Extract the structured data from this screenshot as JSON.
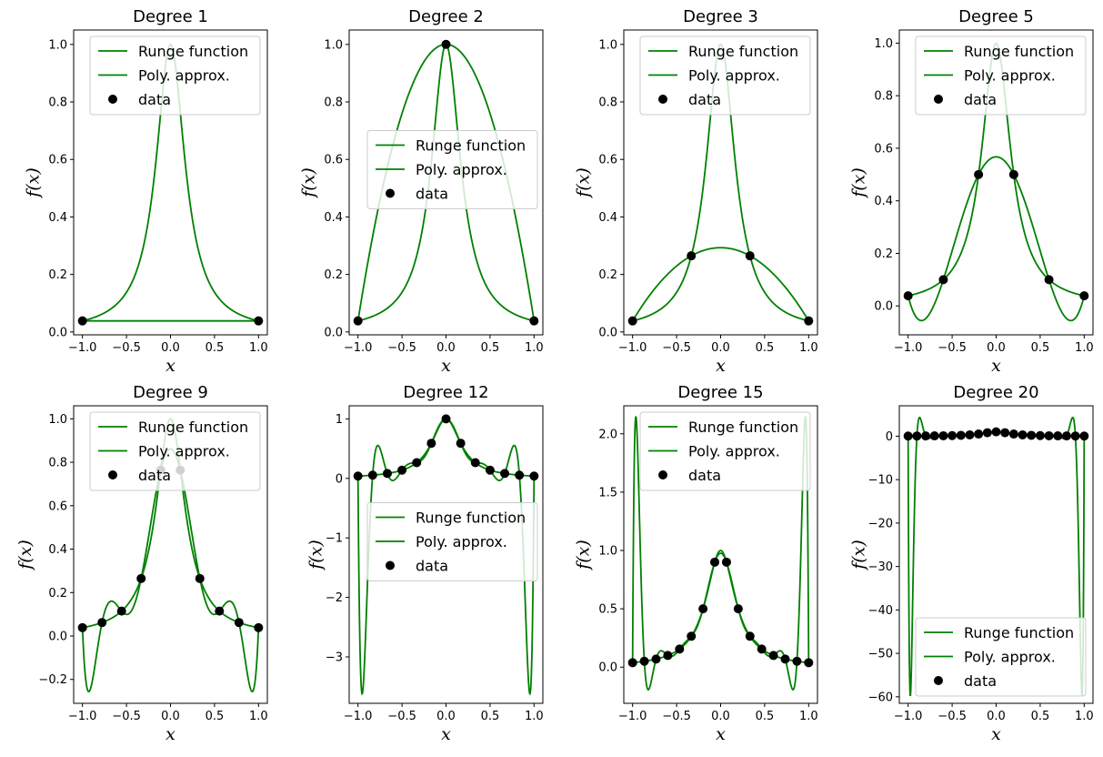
{
  "chart_data": [
    {
      "type": "line",
      "title": "Degree 1",
      "degree": 1,
      "xlabel": "x",
      "ylabel": "f(x)",
      "xlim": [
        -1.1,
        1.1
      ],
      "ylim": [
        -0.01,
        1.05
      ],
      "xticks": [
        -1.0,
        -0.5,
        0.0,
        0.5,
        1.0
      ],
      "xtick_labels": [
        "−1.0",
        "−0.5",
        "0.0",
        "0.5",
        "1.0"
      ],
      "yticks": [
        0.0,
        0.2,
        0.4,
        0.6,
        0.8,
        1.0
      ],
      "ytick_labels": [
        "0.0",
        "0.2",
        "0.4",
        "0.6",
        "0.8",
        "1.0"
      ],
      "legend": {
        "placement": "upper-right",
        "entries": [
          "Runge function",
          "Poly. approx.",
          "data"
        ]
      },
      "series": [
        {
          "name": "Runge function",
          "color": "#008000"
        },
        {
          "name": "Poly. approx.",
          "color": "#008000"
        },
        {
          "name": "data",
          "color": "#000000"
        }
      ]
    },
    {
      "type": "line",
      "title": "Degree 2",
      "degree": 2,
      "xlabel": "x",
      "ylabel": "f(x)",
      "xlim": [
        -1.1,
        1.1
      ],
      "ylim": [
        -0.01,
        1.05
      ],
      "xticks": [
        -1.0,
        -0.5,
        0.0,
        0.5,
        1.0
      ],
      "xtick_labels": [
        "−1.0",
        "−0.5",
        "0.0",
        "0.5",
        "1.0"
      ],
      "yticks": [
        0.0,
        0.2,
        0.4,
        0.6,
        0.8,
        1.0
      ],
      "ytick_labels": [
        "0.0",
        "0.2",
        "0.4",
        "0.6",
        "0.8",
        "1.0"
      ],
      "legend": {
        "placement": "center-right",
        "entries": [
          "Runge function",
          "Poly. approx.",
          "data"
        ]
      },
      "series": [
        {
          "name": "Runge function",
          "color": "#008000"
        },
        {
          "name": "Poly. approx.",
          "color": "#008000"
        },
        {
          "name": "data",
          "color": "#000000"
        }
      ]
    },
    {
      "type": "line",
      "title": "Degree 3",
      "degree": 3,
      "xlabel": "x",
      "ylabel": "f(x)",
      "xlim": [
        -1.1,
        1.1
      ],
      "ylim": [
        -0.01,
        1.05
      ],
      "xticks": [
        -1.0,
        -0.5,
        0.0,
        0.5,
        1.0
      ],
      "xtick_labels": [
        "−1.0",
        "−0.5",
        "0.0",
        "0.5",
        "1.0"
      ],
      "yticks": [
        0.0,
        0.2,
        0.4,
        0.6,
        0.8,
        1.0
      ],
      "ytick_labels": [
        "0.0",
        "0.2",
        "0.4",
        "0.6",
        "0.8",
        "1.0"
      ],
      "legend": {
        "placement": "upper-right",
        "entries": [
          "Runge function",
          "Poly. approx.",
          "data"
        ]
      },
      "series": [
        {
          "name": "Runge function",
          "color": "#008000"
        },
        {
          "name": "Poly. approx.",
          "color": "#008000"
        },
        {
          "name": "data",
          "color": "#000000"
        }
      ]
    },
    {
      "type": "line",
      "title": "Degree 5",
      "degree": 5,
      "xlabel": "x",
      "ylabel": "f(x)",
      "xlim": [
        -1.1,
        1.1
      ],
      "ylim": [
        -0.11,
        1.05
      ],
      "xticks": [
        -1.0,
        -0.5,
        0.0,
        0.5,
        1.0
      ],
      "xtick_labels": [
        "−1.0",
        "−0.5",
        "0.0",
        "0.5",
        "1.0"
      ],
      "yticks": [
        0.0,
        0.2,
        0.4,
        0.6,
        0.8,
        1.0
      ],
      "ytick_labels": [
        "0.0",
        "0.2",
        "0.4",
        "0.6",
        "0.8",
        "1.0"
      ],
      "legend": {
        "placement": "upper-right",
        "entries": [
          "Runge function",
          "Poly. approx.",
          "data"
        ]
      },
      "series": [
        {
          "name": "Runge function",
          "color": "#008000"
        },
        {
          "name": "Poly. approx.",
          "color": "#008000"
        },
        {
          "name": "data",
          "color": "#000000"
        }
      ]
    },
    {
      "type": "line",
      "title": "Degree 9",
      "degree": 9,
      "xlabel": "x",
      "ylabel": "f(x)",
      "xlim": [
        -1.1,
        1.1
      ],
      "ylim": [
        -0.31,
        1.06
      ],
      "xticks": [
        -1.0,
        -0.5,
        0.0,
        0.5,
        1.0
      ],
      "xtick_labels": [
        "−1.0",
        "−0.5",
        "0.0",
        "0.5",
        "1.0"
      ],
      "yticks": [
        -0.2,
        0.0,
        0.2,
        0.4,
        0.6,
        0.8,
        1.0
      ],
      "ytick_labels": [
        "−0.2",
        "0.0",
        "0.2",
        "0.4",
        "0.6",
        "0.8",
        "1.0"
      ],
      "legend": {
        "placement": "upper-right",
        "entries": [
          "Runge function",
          "Poly. approx.",
          "data"
        ]
      },
      "series": [
        {
          "name": "Runge function",
          "color": "#008000"
        },
        {
          "name": "Poly. approx.",
          "color": "#008000"
        },
        {
          "name": "data",
          "color": "#000000"
        }
      ]
    },
    {
      "type": "line",
      "title": "Degree 12",
      "degree": 12,
      "xlabel": "x",
      "ylabel": "f(x)",
      "xlim": [
        -1.1,
        1.1
      ],
      "ylim": [
        -3.78,
        1.22
      ],
      "xticks": [
        -1.0,
        -0.5,
        0.0,
        0.5,
        1.0
      ],
      "xtick_labels": [
        "−1.0",
        "−0.5",
        "0.0",
        "0.5",
        "1.0"
      ],
      "yticks": [
        -3,
        -2,
        -1,
        0,
        1
      ],
      "ytick_labels": [
        "−3",
        "−2",
        "−1",
        "0",
        "1"
      ],
      "legend": {
        "placement": "center-right",
        "entries": [
          "Runge function",
          "Poly. approx.",
          "data"
        ]
      },
      "series": [
        {
          "name": "Runge function",
          "color": "#008000"
        },
        {
          "name": "Poly. approx.",
          "color": "#008000"
        },
        {
          "name": "data",
          "color": "#000000"
        }
      ]
    },
    {
      "type": "line",
      "title": "Degree 15",
      "degree": 15,
      "xlabel": "x",
      "ylabel": "f(x)",
      "xlim": [
        -1.1,
        1.1
      ],
      "ylim": [
        -0.31,
        2.24
      ],
      "xticks": [
        -1.0,
        -0.5,
        0.0,
        0.5,
        1.0
      ],
      "xtick_labels": [
        "−1.0",
        "−0.5",
        "0.0",
        "0.5",
        "1.0"
      ],
      "yticks": [
        0.0,
        0.5,
        1.0,
        1.5,
        2.0
      ],
      "ytick_labels": [
        "0.0",
        "0.5",
        "1.0",
        "1.5",
        "2.0"
      ],
      "legend": {
        "placement": "upper-right",
        "entries": [
          "Runge function",
          "Poly. approx.",
          "data"
        ]
      },
      "series": [
        {
          "name": "Runge function",
          "color": "#008000"
        },
        {
          "name": "Poly. approx.",
          "color": "#008000"
        },
        {
          "name": "data",
          "color": "#000000"
        }
      ]
    },
    {
      "type": "line",
      "title": "Degree 20",
      "degree": 20,
      "xlabel": "x",
      "ylabel": "f(x)",
      "xlim": [
        -1.1,
        1.1
      ],
      "ylim": [
        -61.5,
        7.0
      ],
      "xticks": [
        -1.0,
        -0.5,
        0.0,
        0.5,
        1.0
      ],
      "xtick_labels": [
        "−1.0",
        "−0.5",
        "0.0",
        "0.5",
        "1.0"
      ],
      "yticks": [
        -60,
        -50,
        -40,
        -30,
        -20,
        -10,
        0
      ],
      "ytick_labels": [
        "−60",
        "−50",
        "−40",
        "−30",
        "−20",
        "−10",
        "0"
      ],
      "legend": {
        "placement": "lower-right",
        "entries": [
          "Runge function",
          "Poly. approx.",
          "data"
        ]
      },
      "series": [
        {
          "name": "Runge function",
          "color": "#008000"
        },
        {
          "name": "Poly. approx.",
          "color": "#008000"
        },
        {
          "name": "data",
          "color": "#000000"
        }
      ]
    }
  ]
}
